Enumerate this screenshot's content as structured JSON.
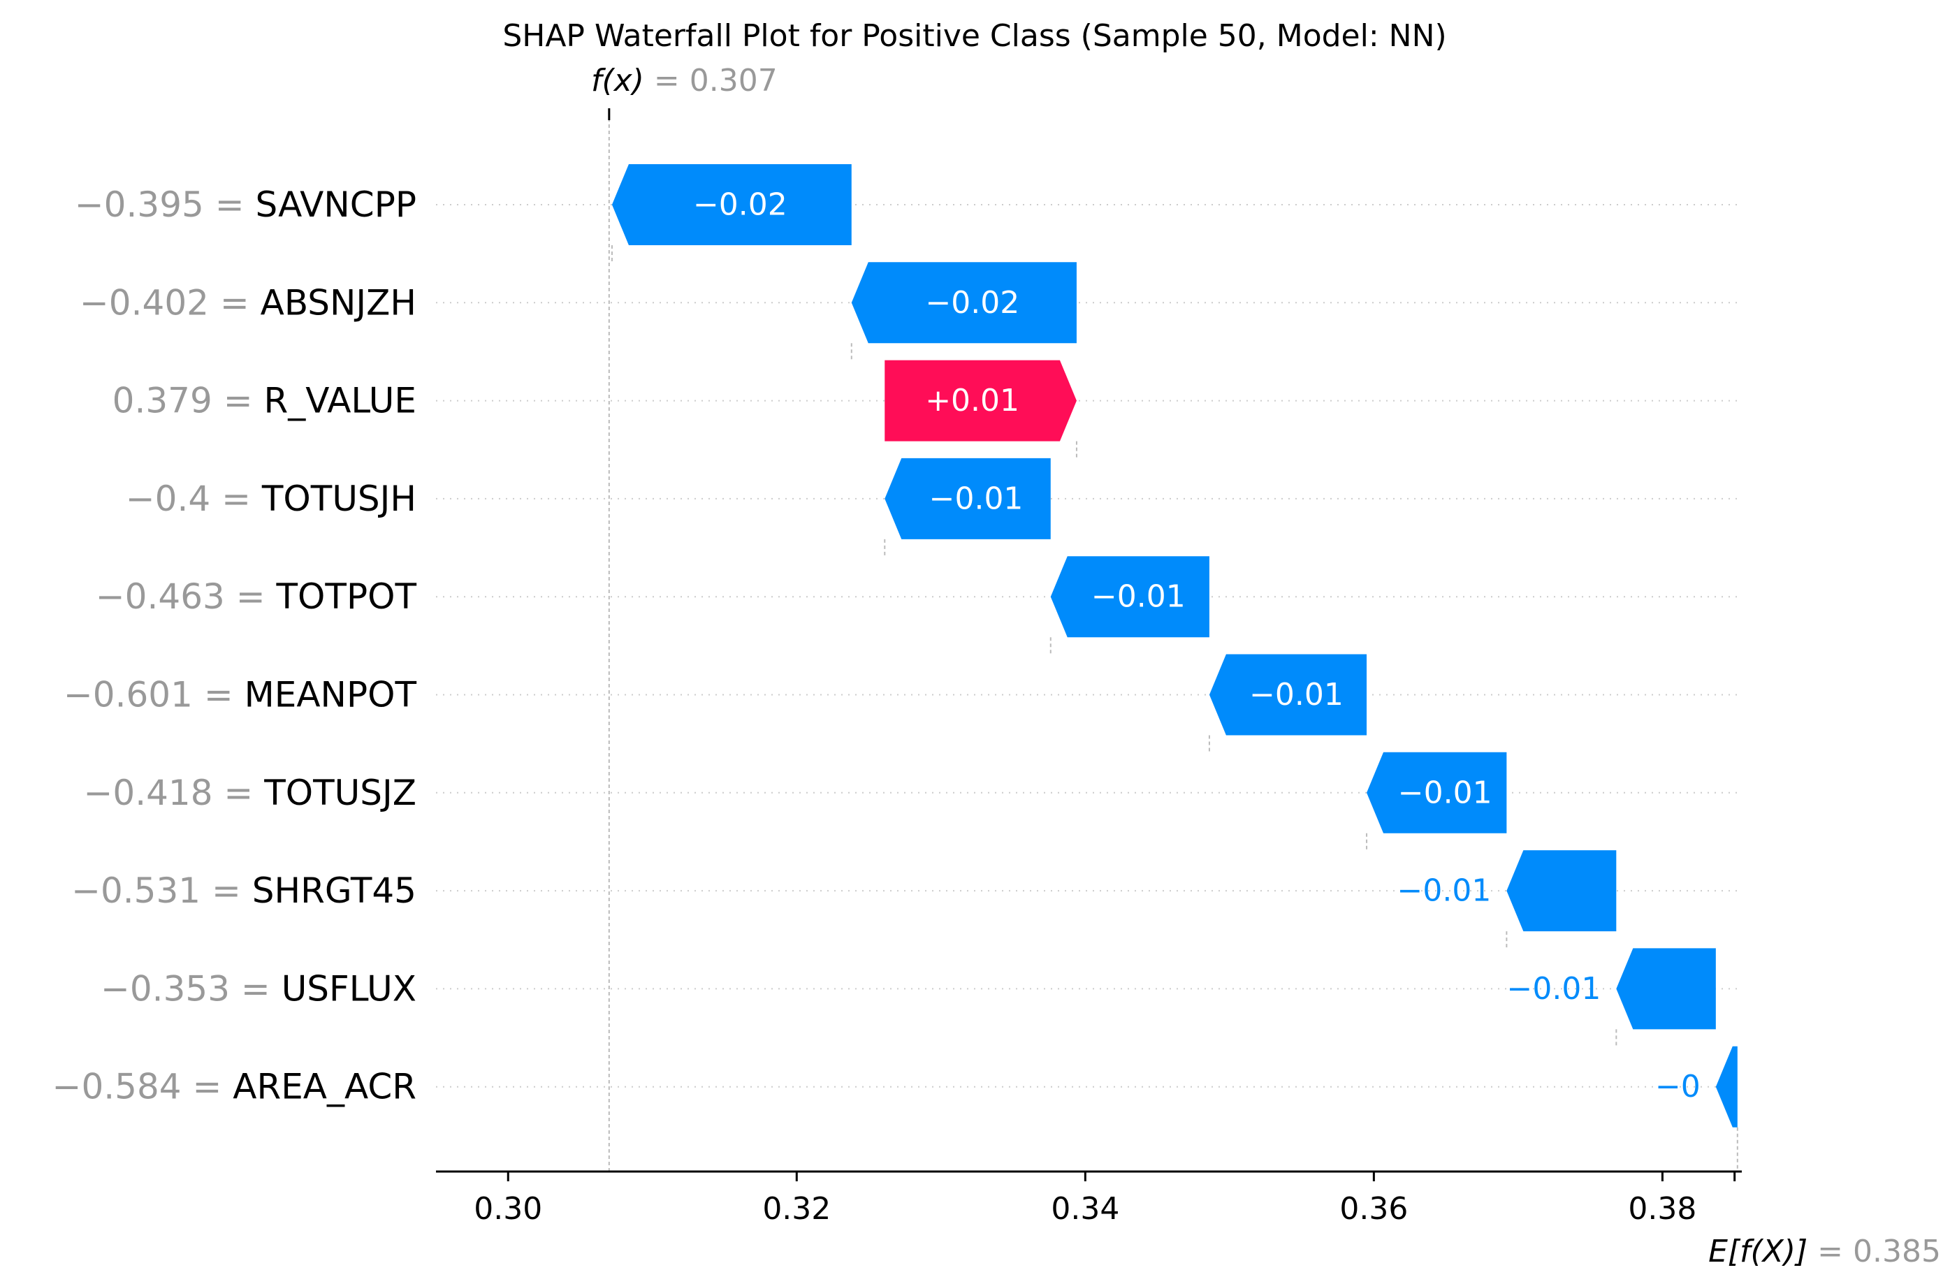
{
  "chart_data": {
    "type": "waterfall",
    "title": "SHAP Waterfall Plot for Positive Class (Sample 50, Model: NN)",
    "fx": {
      "label": "f(x)",
      "value": "0.307",
      "x": 0.307
    },
    "base": {
      "label": "E[f(X)]",
      "value": "0.385",
      "x": 0.385
    },
    "xlim": [
      0.295,
      0.3855
    ],
    "xticks": [
      0.3,
      0.32,
      0.34,
      0.36,
      0.38
    ],
    "xtick_labels": [
      "0.30",
      "0.32",
      "0.34",
      "0.36",
      "0.38"
    ],
    "features": [
      {
        "value": "−0.395",
        "name": "SAVNCPP",
        "start": 0.3238,
        "end": 0.3072,
        "label": "−0.02"
      },
      {
        "value": "−0.402",
        "name": "ABSNJZH",
        "start": 0.3394,
        "end": 0.3238,
        "label": "−0.02"
      },
      {
        "value": "0.379",
        "name": "R_VALUE",
        "start": 0.3261,
        "end": 0.3394,
        "label": "+0.01"
      },
      {
        "value": "−0.4",
        "name": "TOTUSJH",
        "start": 0.3376,
        "end": 0.3261,
        "label": "−0.01"
      },
      {
        "value": "−0.463",
        "name": "TOTPOT",
        "start": 0.3486,
        "end": 0.3376,
        "label": "−0.01"
      },
      {
        "value": "−0.601",
        "name": "MEANPOT",
        "start": 0.3595,
        "end": 0.3486,
        "label": "−0.01"
      },
      {
        "value": "−0.418",
        "name": "TOTUSJZ",
        "start": 0.3692,
        "end": 0.3595,
        "label": "−0.01"
      },
      {
        "value": "−0.531",
        "name": "SHRGT45",
        "start": 0.3768,
        "end": 0.3692,
        "label": "−0.01"
      },
      {
        "value": "−0.353",
        "name": "USFLUX",
        "start": 0.3837,
        "end": 0.3768,
        "label": "−0.01"
      },
      {
        "value": "−0.584",
        "name": "AREA_ACR",
        "start": 0.3852,
        "end": 0.3837,
        "label": "−0"
      }
    ],
    "colors": {
      "positive": "#ff0d57",
      "negative": "#008bfb",
      "muted": "#999999"
    }
  }
}
